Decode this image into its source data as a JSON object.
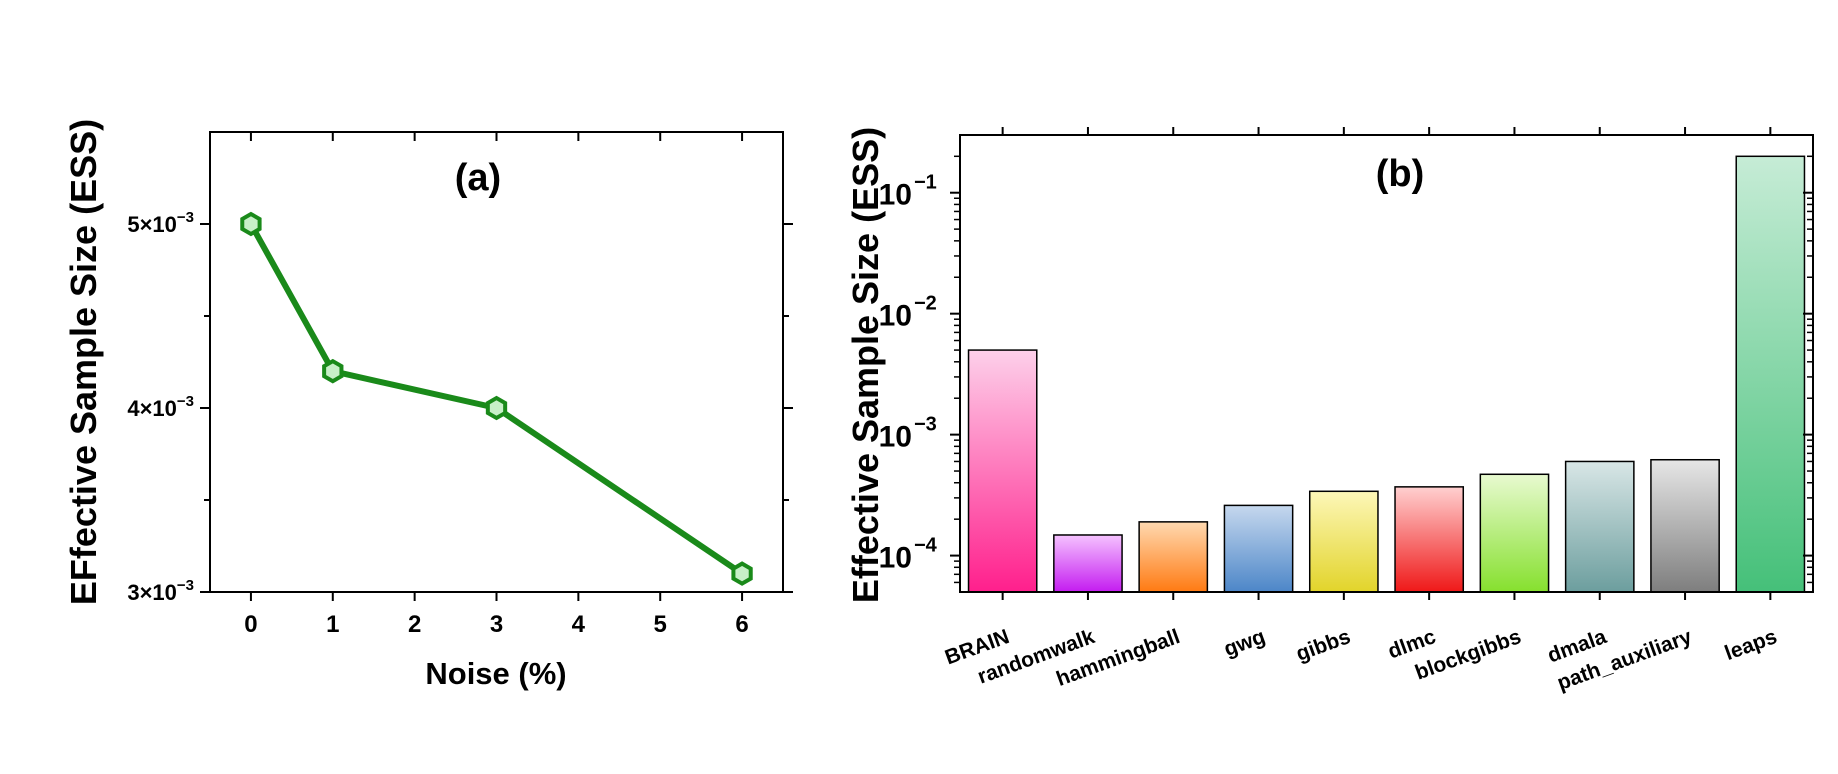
{
  "chart_data": [
    {
      "type": "line",
      "title": "(a)",
      "xlabel": "Noise (%)",
      "ylabel": "EFfective Sample Size (ESS)",
      "x": [
        0,
        1,
        3,
        6
      ],
      "values": [
        0.005,
        0.0042,
        0.004,
        0.0031
      ],
      "xlim": [
        -0.5,
        6.5
      ],
      "ylim": [
        0.003,
        0.0055
      ],
      "x_ticks": [
        0,
        1,
        2,
        3,
        4,
        5,
        6
      ],
      "y_ticks": [
        {
          "value": 0.003,
          "mant": "3×10",
          "exp": "−3"
        },
        {
          "value": 0.004,
          "mant": "4×10",
          "exp": "−3"
        },
        {
          "value": 0.005,
          "mant": "5×10",
          "exp": "−3"
        }
      ],
      "y_minor_ticks": [
        0.0035,
        0.0045
      ],
      "line_color": "#1a8a1a",
      "marker_fill": "#c8f0c8",
      "grid": false,
      "legend": "none"
    },
    {
      "type": "bar",
      "title": "(b)",
      "xlabel": "",
      "ylabel": "Effective Sample Size (ESS)",
      "y_scale": "log",
      "ylim": [
        5e-05,
        0.3
      ],
      "y_ticks": [
        {
          "value": 0.0001,
          "exp": "−4"
        },
        {
          "value": 0.001,
          "exp": "−3"
        },
        {
          "value": 0.01,
          "exp": "−2"
        },
        {
          "value": 0.1,
          "exp": "−1"
        }
      ],
      "categories": [
        "BRAIN",
        "randomwalk",
        "hammingball",
        "gwg",
        "gibbs",
        "dlmc",
        "blockgibbs",
        "dmala",
        "path_auxiliary",
        "leaps"
      ],
      "values": [
        0.005,
        0.000148,
        0.00019,
        0.00026,
        0.00034,
        0.00037,
        0.00047,
        0.0006,
        0.00062,
        0.2
      ],
      "colors": [
        {
          "top": "#fdd0ea",
          "bottom": "#ff1f8c"
        },
        {
          "top": "#f5c2ff",
          "bottom": "#c41cf0"
        },
        {
          "top": "#ffd9b0",
          "bottom": "#ff7a12"
        },
        {
          "top": "#c6d8ee",
          "bottom": "#4c86c8"
        },
        {
          "top": "#fdf7b8",
          "bottom": "#e2d42a"
        },
        {
          "top": "#ffd0d0",
          "bottom": "#ef1818"
        },
        {
          "top": "#e8fad0",
          "bottom": "#86e02e"
        },
        {
          "top": "#d8e6e6",
          "bottom": "#6c9e9e"
        },
        {
          "top": "#e6e6e6",
          "bottom": "#7e7e7e"
        },
        {
          "top": "#c6ecd6",
          "bottom": "#45c079"
        }
      ],
      "grid": false,
      "legend": "none"
    }
  ]
}
